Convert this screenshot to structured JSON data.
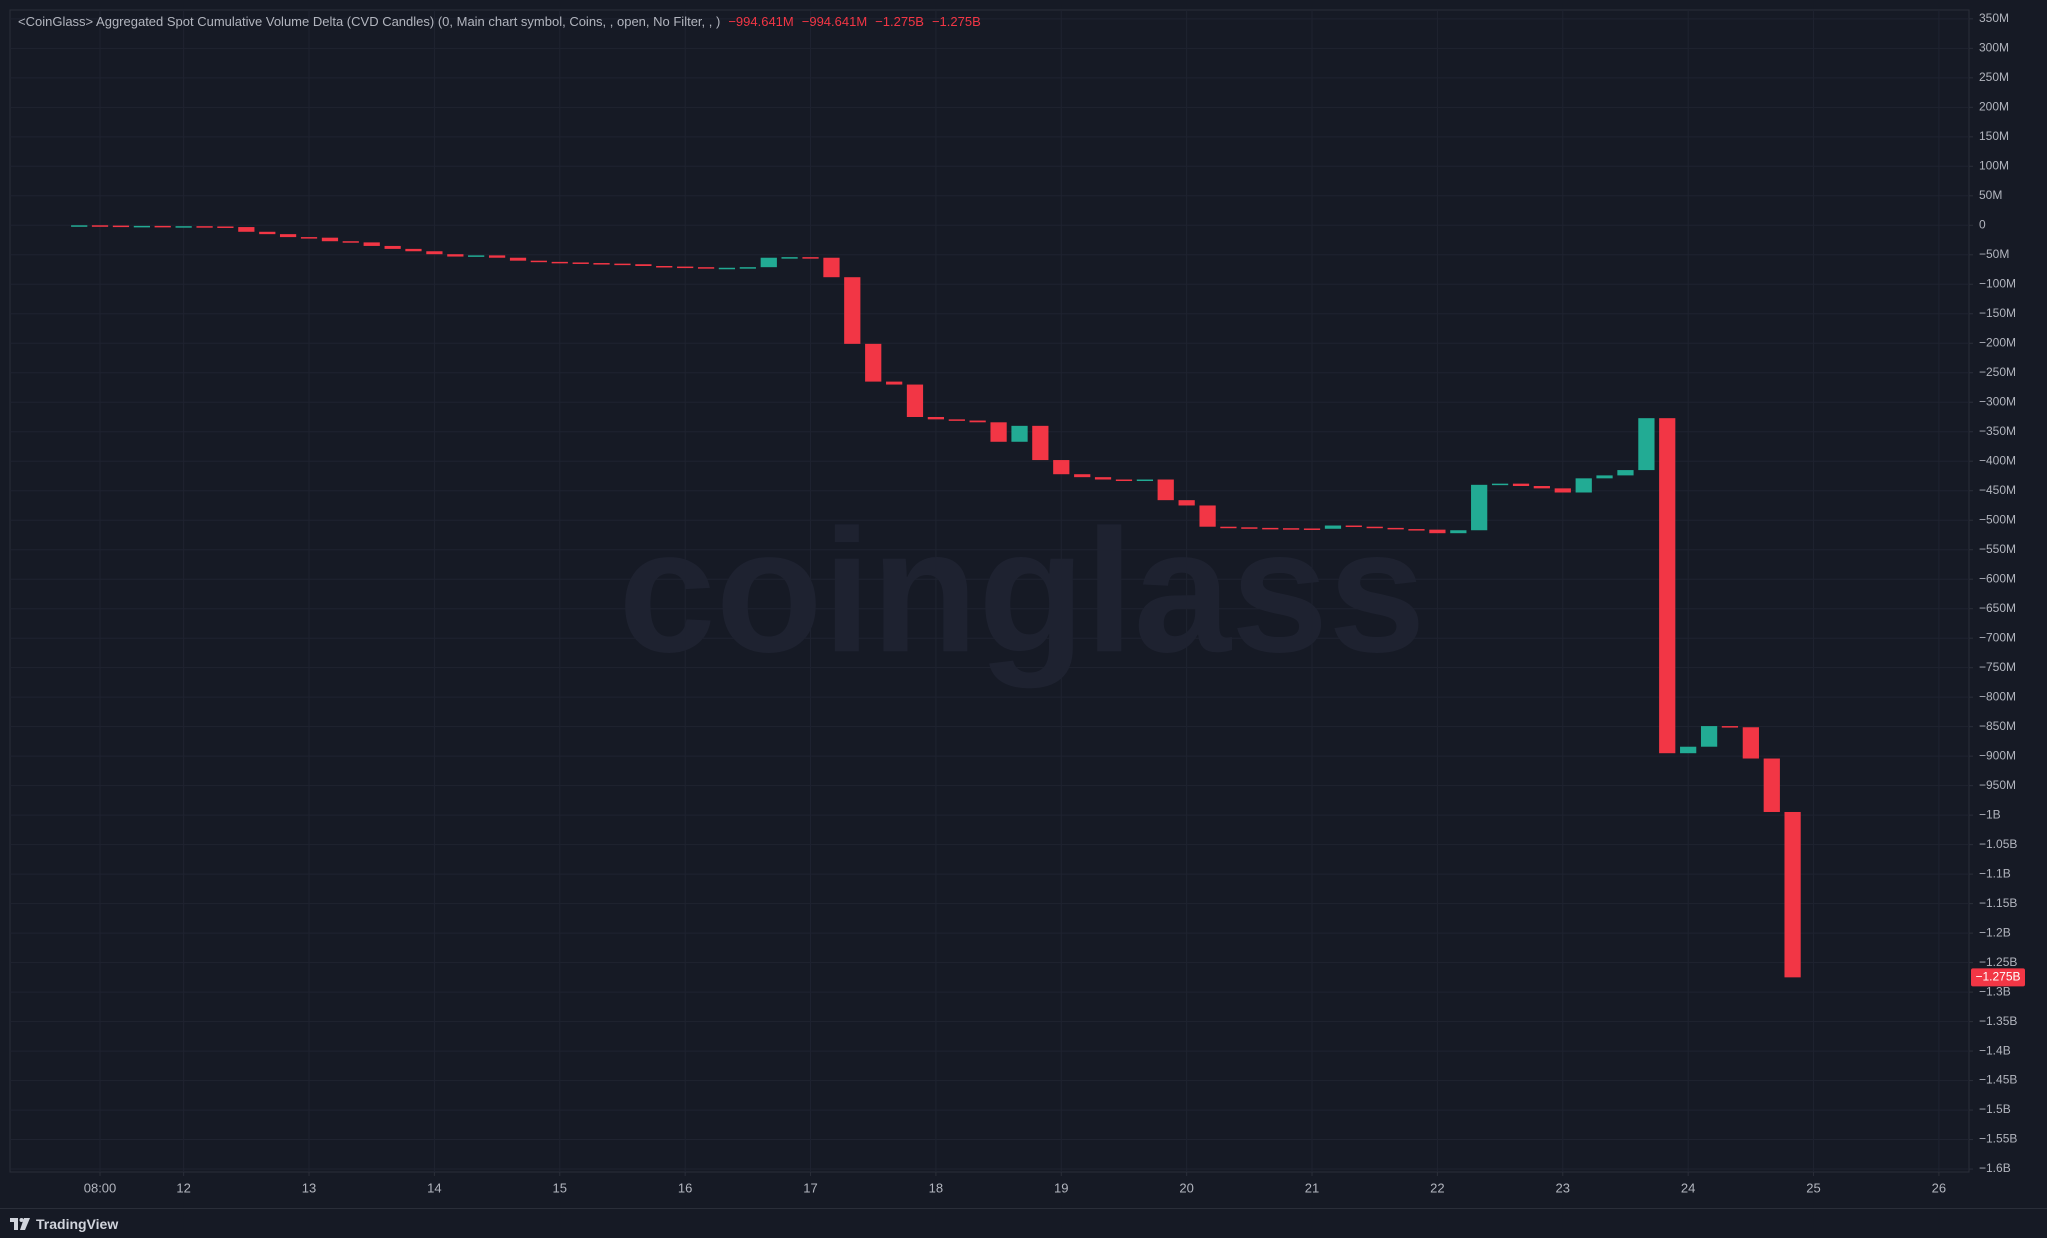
{
  "chart_data": {
    "type": "candlestick",
    "title": "<CoinGlass> Aggregated Spot Cumulative Volume Delta (CVD Candles) (0, Main chart symbol, Coins, , open, No Filter, , )",
    "readouts": [
      "−994.641M",
      "−994.641M",
      "−1.275B",
      "−1.275B"
    ],
    "watermark": "coinglass",
    "last_label": "−1.275B",
    "up_color": "#22ab94",
    "down_color": "#f23645",
    "grid": true,
    "x": [
      11.167,
      11.333,
      11.5,
      11.667,
      11.833,
      12,
      12.167,
      12.333,
      12.5,
      12.667,
      12.833,
      13,
      13.167,
      13.333,
      13.5,
      13.667,
      13.833,
      14,
      14.167,
      14.333,
      14.5,
      14.667,
      14.833,
      15,
      15.167,
      15.333,
      15.5,
      15.667,
      15.833,
      16,
      16.167,
      16.333,
      16.5,
      16.667,
      16.833,
      17,
      17.167,
      17.333,
      17.5,
      17.667,
      17.833,
      18,
      18.167,
      18.333,
      18.5,
      18.667,
      18.833,
      19,
      19.167,
      19.333,
      19.5,
      19.667,
      19.833,
      20,
      20.167,
      20.333,
      20.5,
      20.667,
      20.833,
      21,
      21.167,
      21.333,
      21.5,
      21.667,
      21.833,
      22,
      22.167,
      22.333,
      22.5,
      22.667,
      22.833,
      23,
      23.167,
      23.333,
      23.5,
      23.667,
      23.833,
      24,
      24.167,
      24.333,
      24.5,
      24.667,
      24.833
    ],
    "open": [
      -1,
      0,
      -0.5,
      -1,
      -1,
      -1.5,
      -1.5,
      -2,
      -3,
      -11,
      -15,
      -20,
      -21,
      -27,
      -29,
      -35,
      -40,
      -44,
      -49,
      -53,
      -51,
      -55,
      -60,
      -62,
      -63,
      -64,
      -65,
      -66,
      -69,
      -70,
      -71,
      -73,
      -72,
      -71,
      -55,
      -54,
      -55,
      -88,
      -201,
      -265,
      -270,
      -325,
      -329,
      -331,
      -334,
      -367,
      -340,
      -398,
      -422,
      -427,
      -431,
      -433,
      -431,
      -466,
      -475,
      -511,
      -512,
      -513,
      -513.5,
      -514,
      -514.5,
      -509,
      -511,
      -513,
      -515,
      -516,
      -522,
      -517,
      -440,
      -438,
      -442,
      -446,
      -453,
      -429,
      -424,
      -415,
      -327,
      -895,
      -884,
      -849,
      -851,
      -904,
      -994.641
    ],
    "close": [
      0,
      -0.5,
      -1,
      -1,
      -1.5,
      -1.5,
      -2,
      -3,
      -11,
      -15,
      -20,
      -21,
      -27,
      -29,
      -35,
      -40,
      -44,
      -49,
      -53,
      -51,
      -55,
      -60,
      -62,
      -63,
      -64,
      -65,
      -66,
      -69,
      -70,
      -71,
      -73,
      -72,
      -71,
      -55,
      -54,
      -55,
      -88,
      -201,
      -265,
      -270,
      -325,
      -329,
      -331,
      -334,
      -367,
      -340,
      -398,
      -422,
      -427,
      -431,
      -433,
      -431,
      -466,
      -475,
      -511,
      -512,
      -513,
      -513.5,
      -514,
      -514.5,
      -509,
      -511,
      -513,
      -515,
      -516,
      -522,
      -517,
      -440,
      -438,
      -442,
      -446,
      -453,
      -429,
      -424,
      -415,
      -327,
      -895,
      -884,
      -849,
      -851,
      -904,
      -994.641,
      -1275
    ],
    "xlim": [
      10.615,
      26.24
    ],
    "xticks": [
      {
        "value": 11.333,
        "label": "08:00"
      },
      12,
      13,
      14,
      15,
      16,
      17,
      18,
      19,
      20,
      21,
      22,
      23,
      24,
      25,
      26
    ],
    "ylim": [
      -1605,
      365
    ],
    "yticks": [
      {
        "value": 350,
        "label": "350M"
      },
      {
        "value": 300,
        "label": "300M"
      },
      {
        "value": 250,
        "label": "250M"
      },
      {
        "value": 200,
        "label": "200M"
      },
      {
        "value": 150,
        "label": "150M"
      },
      {
        "value": 100,
        "label": "100M"
      },
      {
        "value": 50,
        "label": "50M"
      },
      0,
      {
        "value": -50,
        "label": "−50M"
      },
      {
        "value": -100,
        "label": "−100M"
      },
      {
        "value": -150,
        "label": "−150M"
      },
      {
        "value": -200,
        "label": "−200M"
      },
      {
        "value": -250,
        "label": "−250M"
      },
      {
        "value": -300,
        "label": "−300M"
      },
      {
        "value": -350,
        "label": "−350M"
      },
      {
        "value": -400,
        "label": "−400M"
      },
      {
        "value": -450,
        "label": "−450M"
      },
      {
        "value": -500,
        "label": "−500M"
      },
      {
        "value": -550,
        "label": "−550M"
      },
      {
        "value": -600,
        "label": "−600M"
      },
      {
        "value": -650,
        "label": "−650M"
      },
      {
        "value": -700,
        "label": "−700M"
      },
      {
        "value": -750,
        "label": "−750M"
      },
      {
        "value": -800,
        "label": "−800M"
      },
      {
        "value": -850,
        "label": "−850M"
      },
      {
        "value": -900,
        "label": "−900M"
      },
      {
        "value": -950,
        "label": "−950M"
      },
      {
        "value": -1000,
        "label": "−1B"
      },
      {
        "value": -1050,
        "label": "−1.05B"
      },
      {
        "value": -1100,
        "label": "−1.1B"
      },
      {
        "value": -1150,
        "label": "−1.15B"
      },
      {
        "value": -1200,
        "label": "−1.2B"
      },
      {
        "value": -1250,
        "label": "−1.25B"
      },
      {
        "value": -1300,
        "label": "−1.3B"
      },
      {
        "value": -1350,
        "label": "−1.35B"
      },
      {
        "value": -1400,
        "label": "−1.4B"
      },
      {
        "value": -1450,
        "label": "−1.45B"
      },
      {
        "value": -1500,
        "label": "−1.5B"
      },
      {
        "value": -1550,
        "label": "−1.55B"
      },
      {
        "value": -1600,
        "label": "−1.6B"
      }
    ]
  },
  "footer": {
    "brand": "TradingView"
  }
}
